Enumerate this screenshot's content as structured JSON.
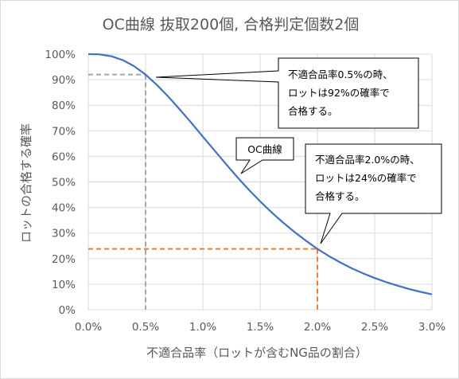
{
  "chart_data": {
    "type": "line",
    "title": "OC曲線 抜取200個, 合格判定個数2個",
    "xlabel": "不適合品率（ロットが含むNG品の割合）",
    "ylabel": "ロットの合格する確率",
    "xlim": [
      0,
      0.03
    ],
    "ylim": [
      0,
      1
    ],
    "x_ticks": [
      0,
      0.005,
      0.01,
      0.015,
      0.02,
      0.025,
      0.03
    ],
    "x_tick_labels": [
      "0.0%",
      "0.5%",
      "1.0%",
      "1.5%",
      "2.0%",
      "2.5%",
      "3.0%"
    ],
    "y_ticks": [
      0,
      0.1,
      0.2,
      0.3,
      0.4,
      0.5,
      0.6,
      0.7,
      0.8,
      0.9,
      1.0
    ],
    "y_tick_labels": [
      "0%",
      "10%",
      "20%",
      "30%",
      "40%",
      "50%",
      "60%",
      "70%",
      "80%",
      "90%",
      "100%"
    ],
    "grid": true,
    "series": [
      {
        "color": "#4472c4",
        "x": [
          0,
          0.001,
          0.002,
          0.003,
          0.004,
          0.005,
          0.006,
          0.007,
          0.008,
          0.009,
          0.01,
          0.011,
          0.012,
          0.013,
          0.014,
          0.015,
          0.016,
          0.017,
          0.018,
          0.019,
          0.02,
          0.021,
          0.022,
          0.023,
          0.024,
          0.025,
          0.026,
          0.027,
          0.028,
          0.029,
          0.03
        ],
        "y": [
          1.0,
          0.999,
          0.992,
          0.977,
          0.953,
          0.92,
          0.879,
          0.833,
          0.783,
          0.731,
          0.677,
          0.624,
          0.571,
          0.519,
          0.47,
          0.424,
          0.381,
          0.341,
          0.304,
          0.27,
          0.238,
          0.21,
          0.185,
          0.162,
          0.142,
          0.124,
          0.108,
          0.094,
          0.081,
          0.07,
          0.06
        ]
      }
    ],
    "reference_lines": [
      {
        "x": 0.005,
        "y": 0.92,
        "color": "#a6a6a6"
      },
      {
        "x": 0.02,
        "y": 0.238,
        "color": "#ed7d31"
      }
    ],
    "annotations": [
      {
        "lines": [
          "不適合品率0.5%の時、",
          "ロットは92%の確率で",
          "合格する。"
        ]
      },
      {
        "lines": [
          "OC曲線"
        ]
      },
      {
        "lines": [
          "不適合品率2.0%の時、",
          "ロットは24%の確率で",
          "合格する。"
        ]
      }
    ]
  }
}
